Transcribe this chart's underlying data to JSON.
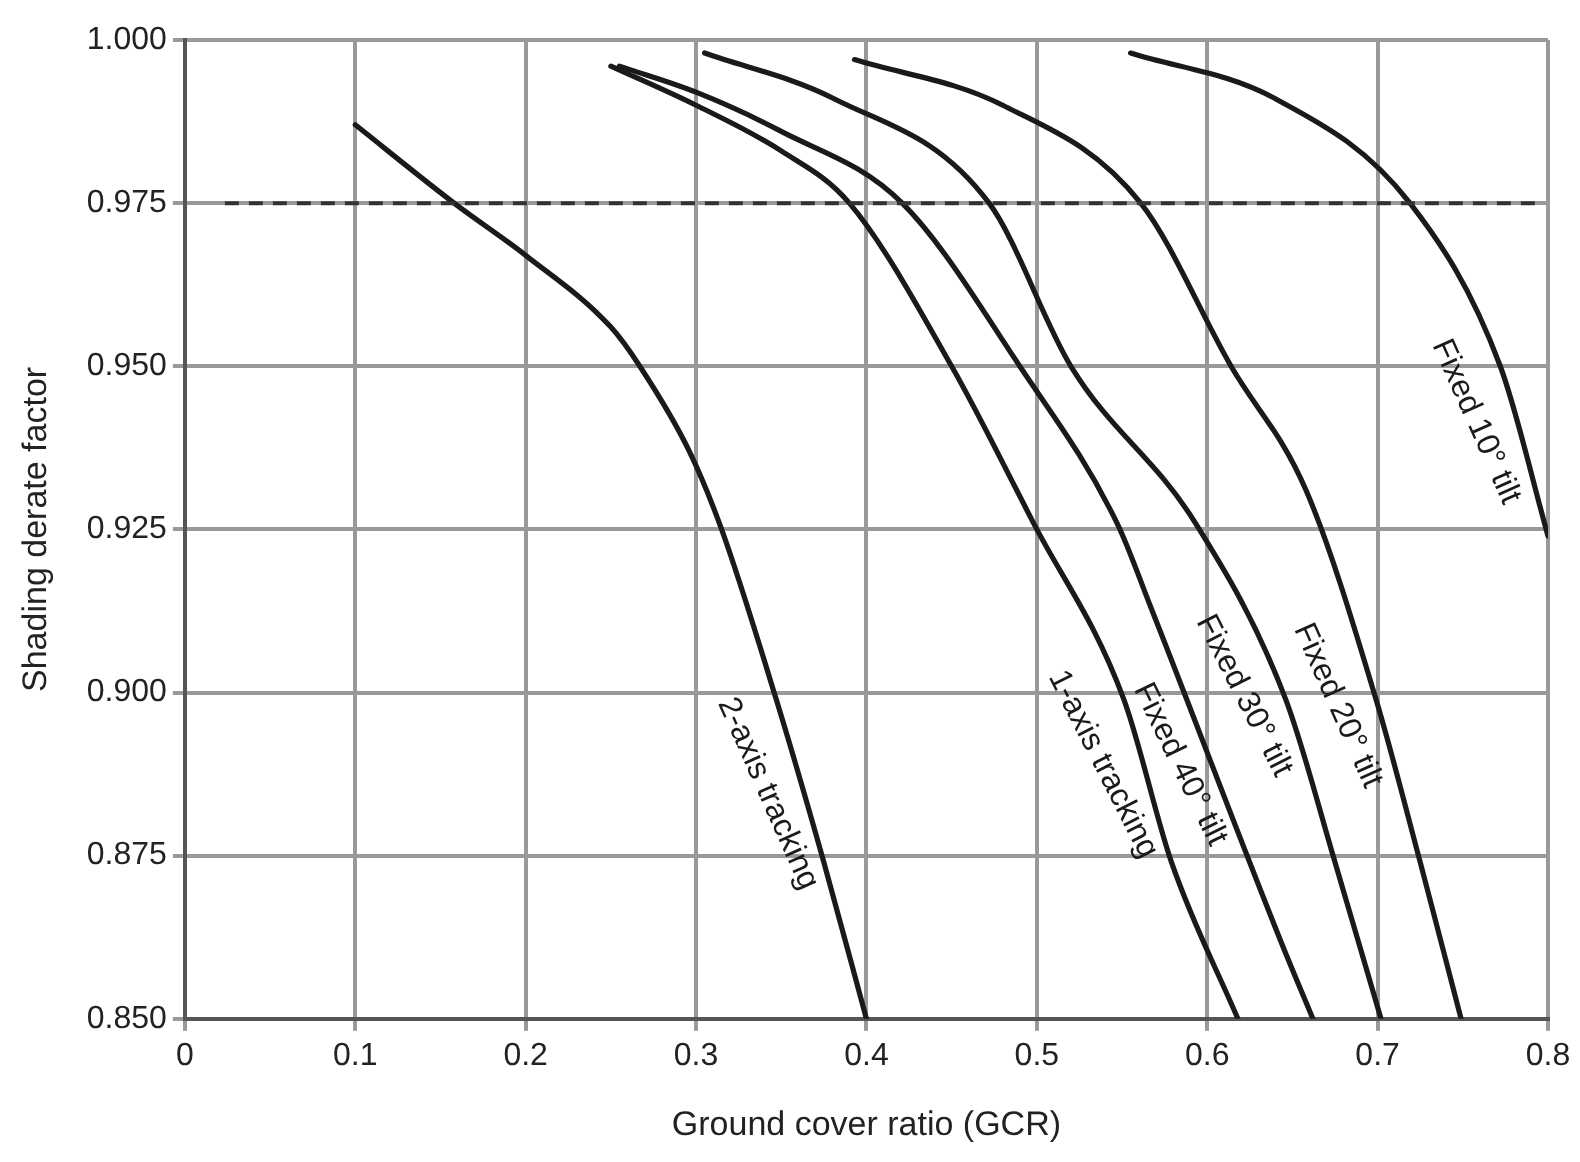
{
  "chart_data": {
    "type": "line",
    "xlabel": "Ground cover ratio (GCR)",
    "ylabel": "Shading derate factor",
    "xlim": [
      0,
      0.8
    ],
    "xticks": [
      0,
      0.1,
      0.2,
      0.3,
      0.4,
      0.5,
      0.6,
      0.7,
      0.8
    ],
    "ylim": [
      0.85,
      1.0
    ],
    "yticks": [
      {
        "value": 0.85,
        "label": "0.850"
      },
      {
        "value": 0.875,
        "label": "0.875"
      },
      {
        "value": 0.9,
        "label": "0.900"
      },
      {
        "value": 0.925,
        "label": "0.925"
      },
      {
        "value": 0.95,
        "label": "0.950"
      },
      {
        "value": 0.975,
        "label": "0.975"
      },
      {
        "value": 1.0,
        "label": "1.000"
      }
    ],
    "grid": true,
    "legend": false,
    "marker": "none",
    "line_style": "solid",
    "series": [
      {
        "name": "2-axis tracking",
        "color": "#1a1a1a",
        "x": [
          0.1,
          0.158,
          0.2,
          0.25,
          0.267,
          0.296,
          0.315,
          0.347,
          0.375,
          0.4
        ],
        "values": [
          0.987,
          0.975,
          0.967,
          0.956,
          0.95,
          0.937,
          0.925,
          0.899,
          0.874,
          0.85
        ]
      },
      {
        "name": "1-axis tracking",
        "color": "#1a1a1a",
        "x": [
          0.25,
          0.3,
          0.35,
          0.39,
          0.45,
          0.498,
          0.551,
          0.579,
          0.618
        ],
        "values": [
          0.996,
          0.99,
          0.983,
          0.975,
          0.95,
          0.926,
          0.899,
          0.874,
          0.85
        ]
      },
      {
        "name": "Fixed 40° tilt",
        "color": "#1a1a1a",
        "x": [
          0.255,
          0.3,
          0.35,
          0.421,
          0.49,
          0.547,
          0.567,
          0.643,
          0.662
        ],
        "values": [
          0.996,
          0.992,
          0.986,
          0.975,
          0.95,
          0.926,
          0.913,
          0.862,
          0.85
        ]
      },
      {
        "name": "Fixed 30° tilt",
        "color": "#1a1a1a",
        "x": [
          0.305,
          0.381,
          0.472,
          0.52,
          0.593,
          0.646,
          0.675,
          0.702
        ],
        "values": [
          0.998,
          0.991,
          0.975,
          0.95,
          0.926,
          0.899,
          0.874,
          0.85
        ]
      },
      {
        "name": "Fixed 20° tilt",
        "color": "#1a1a1a",
        "x": [
          0.393,
          0.48,
          0.561,
          0.614,
          0.658,
          0.699,
          0.725,
          0.749
        ],
        "values": [
          0.997,
          0.99,
          0.975,
          0.95,
          0.931,
          0.899,
          0.874,
          0.85
        ]
      },
      {
        "name": "Fixed 10° tilt",
        "color": "#1a1a1a",
        "x": [
          0.555,
          0.64,
          0.719,
          0.772,
          0.8
        ],
        "values": [
          0.998,
          0.991,
          0.975,
          0.95,
          0.924
        ]
      }
    ],
    "ref_lines": [
      {
        "axis": "y",
        "value": 0.975,
        "color": "#333333",
        "line_style": "dashed"
      }
    ]
  }
}
